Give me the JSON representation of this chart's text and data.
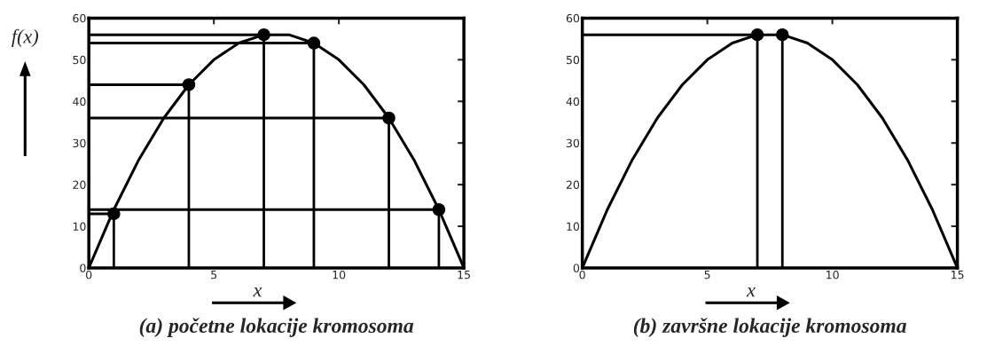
{
  "chart_data": [
    {
      "type": "line",
      "title": "(a) početne lokacije kromosoma",
      "xlabel": "x",
      "ylabel": "f(x)",
      "xlim": [
        0,
        15
      ],
      "xticks": [
        0,
        5,
        10,
        15
      ],
      "ylim": [
        0,
        60
      ],
      "yticks": [
        0,
        10,
        20,
        30,
        40,
        50,
        60
      ],
      "grid": false,
      "legend": false,
      "series": [
        {
          "color": "#000000",
          "x": [
            0,
            1,
            2,
            3,
            4,
            5,
            6,
            7,
            8,
            9,
            10,
            11,
            12,
            13,
            14,
            15
          ],
          "values": [
            0,
            14,
            26,
            36,
            44,
            50,
            54,
            56,
            56,
            54,
            50,
            44,
            36,
            26,
            14,
            0
          ],
          "marker": "none"
        },
        {
          "type": "lollipop",
          "color": "#000000",
          "x": [
            1,
            4,
            7,
            9,
            12,
            14
          ],
          "values": [
            13,
            44,
            56,
            54,
            36,
            14
          ],
          "marker": "circle"
        },
        {
          "color": "#000000",
          "x": [
            0,
            1
          ],
          "values": [
            13,
            13
          ],
          "marker": "none"
        },
        {
          "color": "#000000",
          "x": [
            0,
            4
          ],
          "values": [
            44,
            44
          ],
          "marker": "none"
        },
        {
          "color": "#000000",
          "x": [
            0,
            7
          ],
          "values": [
            56,
            56
          ],
          "marker": "none"
        },
        {
          "color": "#000000",
          "x": [
            0,
            9
          ],
          "values": [
            54,
            54
          ],
          "marker": "none"
        },
        {
          "color": "#000000",
          "x": [
            0,
            12
          ],
          "values": [
            36,
            36
          ],
          "marker": "none"
        },
        {
          "color": "#000000",
          "x": [
            0,
            14
          ],
          "values": [
            14,
            14
          ],
          "marker": "none"
        }
      ]
    },
    {
      "type": "line",
      "title": "(b) završne lokacije kromosoma",
      "xlabel": "x",
      "xlim": [
        0,
        15
      ],
      "xticks": [
        0,
        5,
        10,
        15
      ],
      "ylim": [
        0,
        60
      ],
      "yticks": [
        0,
        10,
        20,
        30,
        40,
        50,
        60
      ],
      "grid": false,
      "legend": false,
      "series": [
        {
          "color": "#000000",
          "x": [
            0,
            1,
            2,
            3,
            4,
            5,
            6,
            7,
            8,
            9,
            10,
            11,
            12,
            13,
            14,
            15
          ],
          "values": [
            0,
            14,
            26,
            36,
            44,
            50,
            54,
            56,
            56,
            54,
            50,
            44,
            36,
            26,
            14,
            0
          ],
          "marker": "none"
        },
        {
          "type": "lollipop",
          "color": "#000000",
          "x": [
            7,
            8
          ],
          "values": [
            56,
            56
          ],
          "marker": "circle"
        },
        {
          "color": "#000000",
          "x": [
            0,
            7
          ],
          "values": [
            56,
            56
          ],
          "marker": "none"
        }
      ]
    }
  ]
}
